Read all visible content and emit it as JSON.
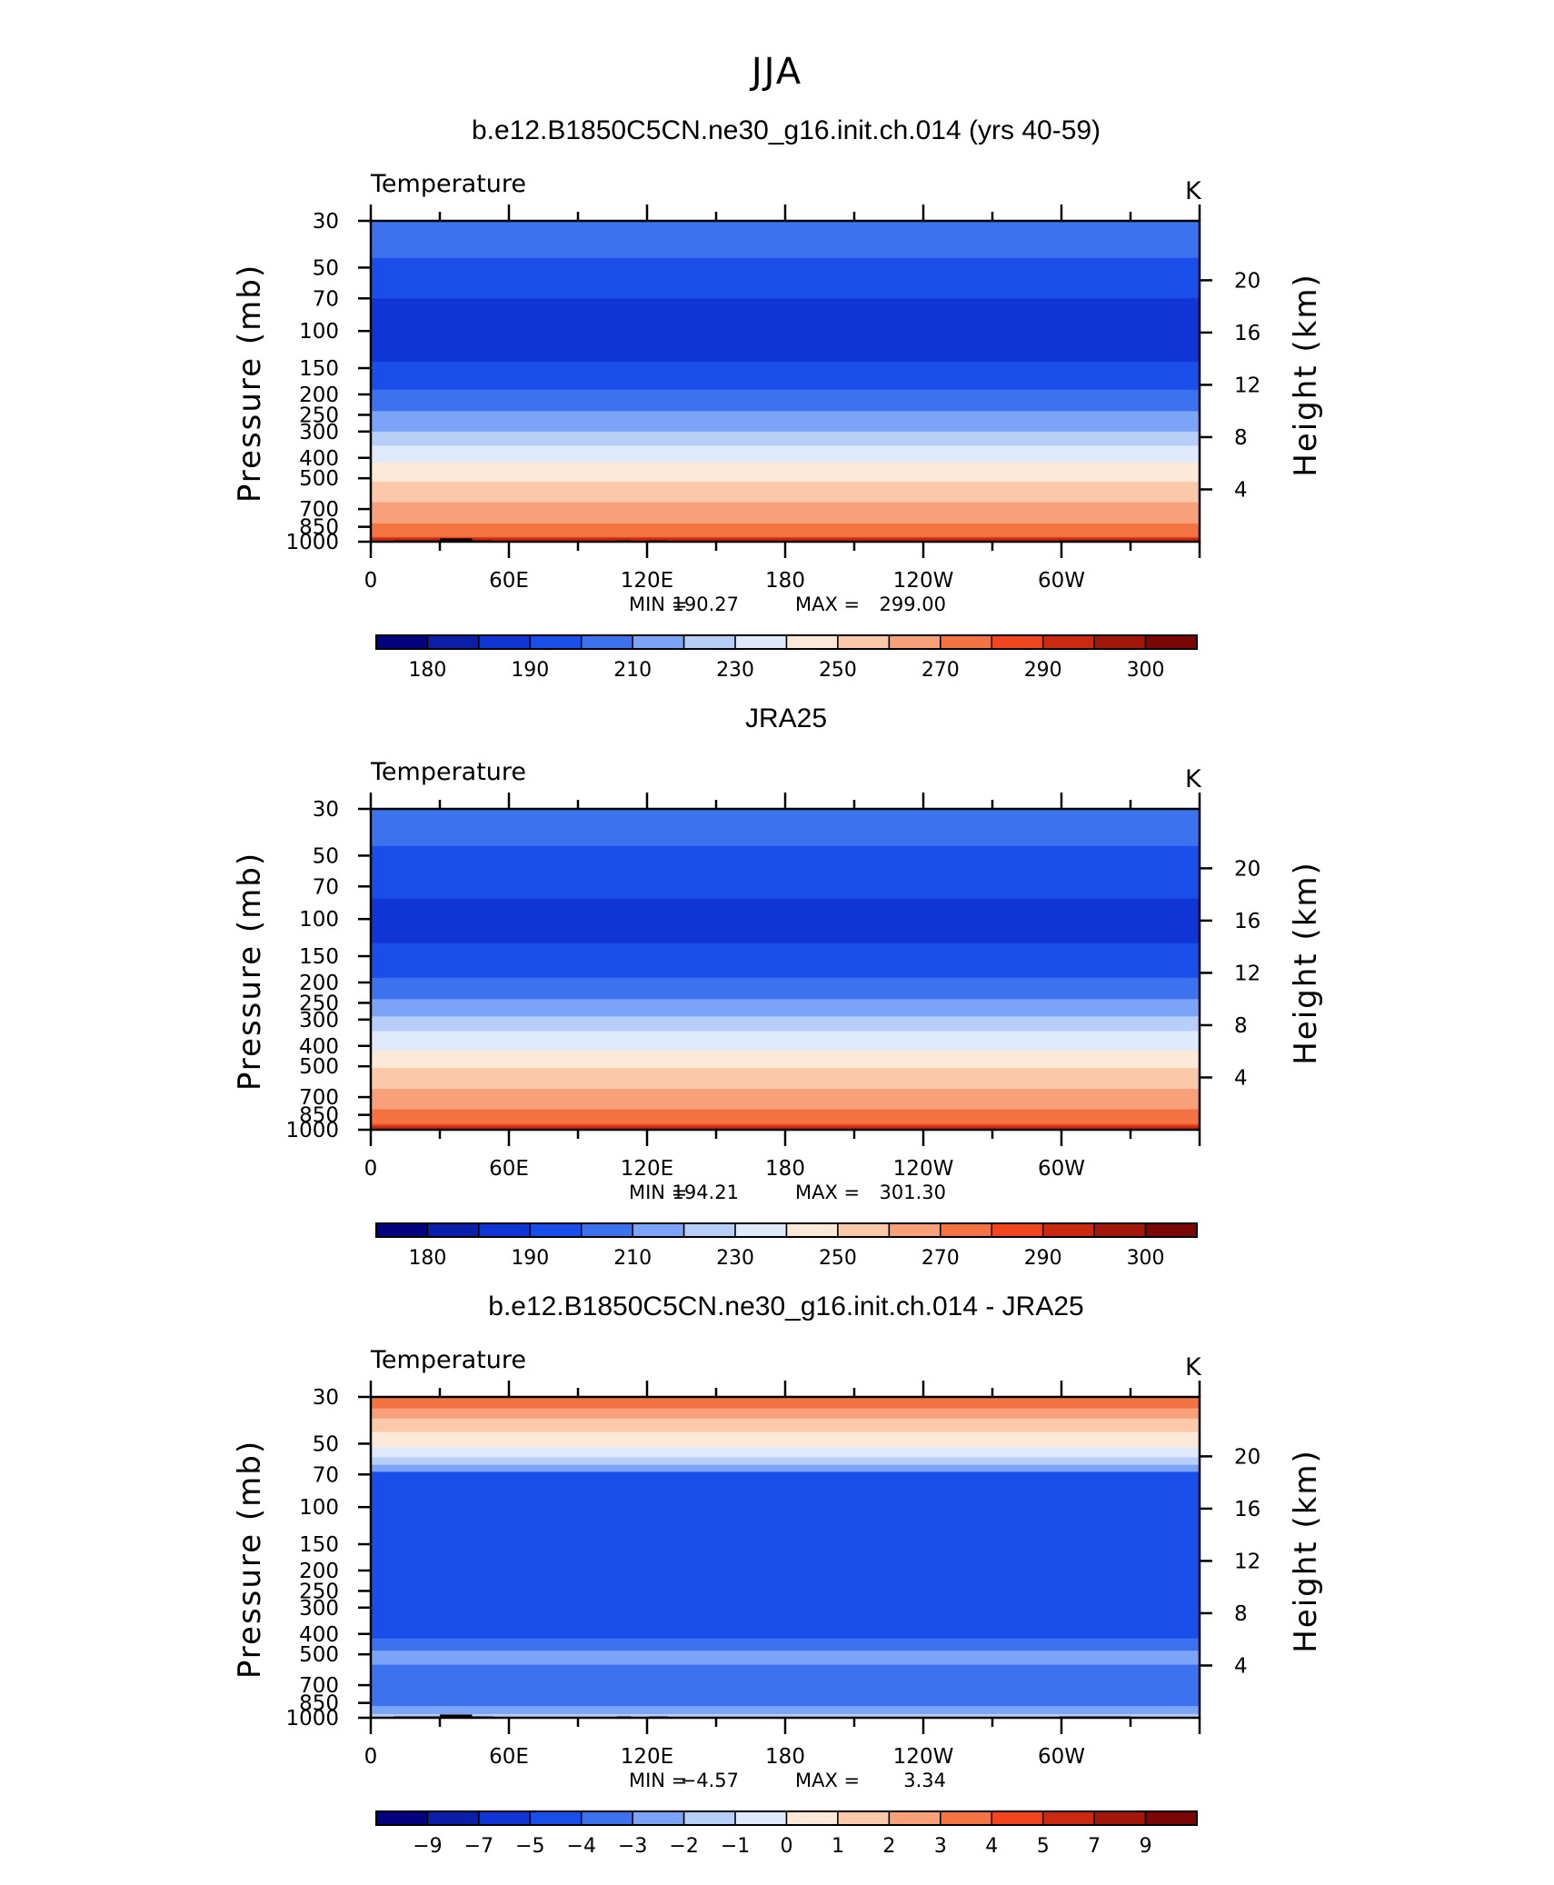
{
  "figure": {
    "main_title": "JJA"
  },
  "chart_data": [
    {
      "type": "heatmap",
      "title": "b.e12.B1850C5CN.ne30_g16.init.ch.014 (yrs 40-59)",
      "left_label": "Temperature",
      "units": "K",
      "ylabel": "Pressure (mb)",
      "ylabel_right": "Height (km)",
      "x_ticks": [
        "0",
        "60E",
        "120E",
        "180",
        "120W",
        "60W"
      ],
      "y_ticks": [
        "30",
        "50",
        "70",
        "100",
        "150",
        "200",
        "250",
        "300",
        "400",
        "500",
        "700",
        "850",
        "1000"
      ],
      "y_right_ticks": [
        "20",
        "16",
        "12",
        "8",
        "4"
      ],
      "stats": {
        "min_label": "MIN =",
        "min": "190.27",
        "max_label": "MAX =",
        "max": "299.00"
      },
      "colorbar_labels": [
        "180",
        "190",
        "210",
        "230",
        "250",
        "270",
        "290",
        "300"
      ],
      "bands": [
        {
          "p": 30,
          "level": 4
        },
        {
          "p": 45,
          "level": 3
        },
        {
          "p": 70,
          "level": 2
        },
        {
          "p": 140,
          "level": 3
        },
        {
          "p": 190,
          "level": 4
        },
        {
          "p": 240,
          "level": 5
        },
        {
          "p": 300,
          "level": 6
        },
        {
          "p": 350,
          "level": 7
        },
        {
          "p": 420,
          "level": 8
        },
        {
          "p": 520,
          "level": 9
        },
        {
          "p": 650,
          "level": 10
        },
        {
          "p": 820,
          "level": 11
        },
        {
          "p": 950,
          "level": 12
        }
      ],
      "topography": true
    },
    {
      "type": "heatmap",
      "title": "JRA25",
      "left_label": "Temperature",
      "units": "K",
      "ylabel": "Pressure (mb)",
      "ylabel_right": "Height (km)",
      "x_ticks": [
        "0",
        "60E",
        "120E",
        "180",
        "120W",
        "60W"
      ],
      "y_ticks": [
        "30",
        "50",
        "70",
        "100",
        "150",
        "200",
        "250",
        "300",
        "400",
        "500",
        "700",
        "850",
        "1000"
      ],
      "y_right_ticks": [
        "20",
        "16",
        "12",
        "8",
        "4"
      ],
      "stats": {
        "min_label": "MIN =",
        "min": "194.21",
        "max_label": "MAX =",
        "max": "301.30"
      },
      "colorbar_labels": [
        "180",
        "190",
        "210",
        "230",
        "250",
        "270",
        "290",
        "300"
      ],
      "bands": [
        {
          "p": 30,
          "level": 4
        },
        {
          "p": 45,
          "level": 3
        },
        {
          "p": 80,
          "level": 2
        },
        {
          "p": 130,
          "level": 3
        },
        {
          "p": 190,
          "level": 4
        },
        {
          "p": 240,
          "level": 5
        },
        {
          "p": 290,
          "level": 6
        },
        {
          "p": 340,
          "level": 7
        },
        {
          "p": 420,
          "level": 8
        },
        {
          "p": 510,
          "level": 9
        },
        {
          "p": 640,
          "level": 10
        },
        {
          "p": 800,
          "level": 11
        },
        {
          "p": 940,
          "level": 12
        }
      ],
      "topography": false
    },
    {
      "type": "heatmap",
      "title": "b.e12.B1850C5CN.ne30_g16.init.ch.014 - JRA25",
      "left_label": "Temperature",
      "units": "K",
      "ylabel": "Pressure (mb)",
      "ylabel_right": "Height (km)",
      "x_ticks": [
        "0",
        "60E",
        "120E",
        "180",
        "120W",
        "60W"
      ],
      "y_ticks": [
        "30",
        "50",
        "70",
        "100",
        "150",
        "200",
        "250",
        "300",
        "400",
        "500",
        "700",
        "850",
        "1000"
      ],
      "y_right_ticks": [
        "20",
        "16",
        "12",
        "8",
        "4"
      ],
      "stats": {
        "min_label": "MIN =",
        "min": "−4.57",
        "max_label": "MAX =",
        "max": "3.34"
      },
      "colorbar_labels": [
        "−9",
        "−7",
        "−5",
        "−4",
        "−3",
        "−2",
        "−1",
        "0",
        "1",
        "2",
        "3",
        "4",
        "5",
        "7",
        "9"
      ],
      "bands": [
        {
          "p": 30,
          "level": 11
        },
        {
          "p": 34,
          "level": 10
        },
        {
          "p": 38,
          "level": 9
        },
        {
          "p": 44,
          "level": 8
        },
        {
          "p": 52,
          "level": 7
        },
        {
          "p": 58,
          "level": 6
        },
        {
          "p": 63,
          "level": 5
        },
        {
          "p": 68,
          "level": 3
        },
        {
          "p": 240,
          "level": 3
        },
        {
          "p": 420,
          "level": 4
        },
        {
          "p": 480,
          "level": 5
        },
        {
          "p": 560,
          "level": 4
        },
        {
          "p": 880,
          "level": 5
        },
        {
          "p": 960,
          "level": 6
        }
      ],
      "topography": true
    }
  ],
  "colorbar_colors": [
    "#030380",
    "#0a1eaa",
    "#0f35d6",
    "#1a4eea",
    "#3d72ee",
    "#7ba3f6",
    "#b7cef8",
    "#deeafb",
    "#fce8d6",
    "#fbc9aa",
    "#f8a07a",
    "#f47342",
    "#f0451e",
    "#cc2a10",
    "#a21709",
    "#7b0606"
  ],
  "topo_color": "#000000"
}
